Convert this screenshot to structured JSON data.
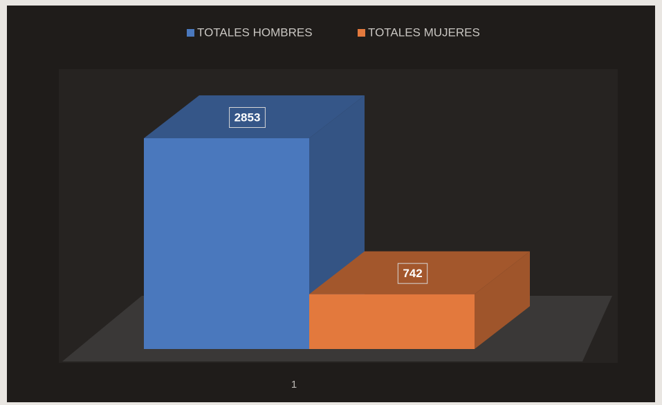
{
  "chart_data": {
    "type": "bar3d",
    "categories": [
      "1"
    ],
    "series": [
      {
        "name": "TOTALES HOMBRES",
        "color": "#4a78bd",
        "values": [
          2853
        ]
      },
      {
        "name": "TOTALES MUJERES",
        "color": "#e3793d",
        "values": [
          742
        ]
      }
    ],
    "legend": "top"
  }
}
